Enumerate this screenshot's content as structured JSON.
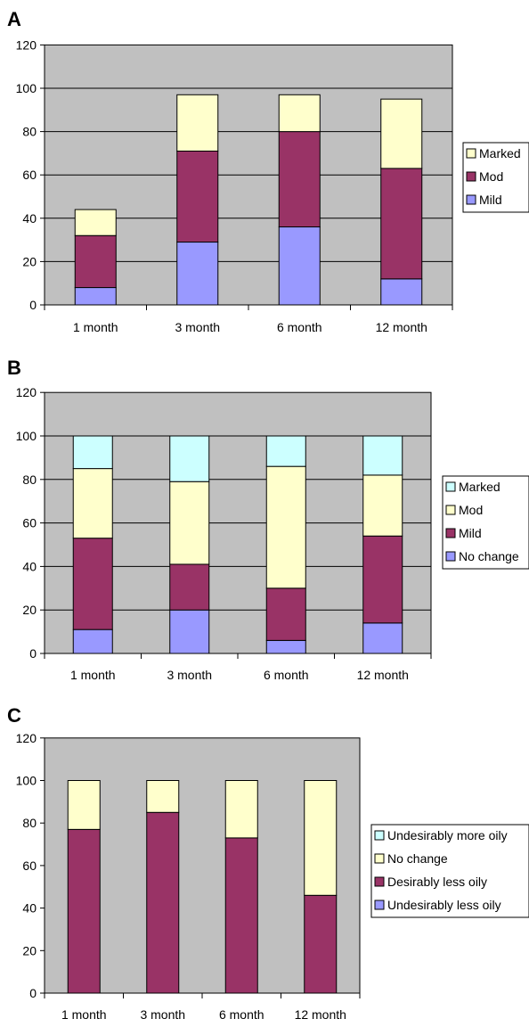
{
  "colors": {
    "plot_background": "#c0c0c0",
    "no_change_blue": "#9999ff",
    "plum": "#993366",
    "light_yellow": "#ffffcc",
    "light_cyan": "#ccffff"
  },
  "chart_data": [
    {
      "type": "bar",
      "stacked": true,
      "panel": "A",
      "categories": [
        "1 month",
        "3 month",
        "6 month",
        "12 month"
      ],
      "ylim": [
        0,
        120
      ],
      "yticks": [
        0,
        20,
        40,
        60,
        80,
        100,
        120
      ],
      "grid": true,
      "legend_position": "right",
      "series": [
        {
          "name": "Mild",
          "color": "#9999ff",
          "values": [
            8,
            29,
            36,
            12
          ]
        },
        {
          "name": "Mod",
          "color": "#993366",
          "values": [
            24,
            42,
            44,
            51
          ]
        },
        {
          "name": "Marked",
          "color": "#ffffcc",
          "values": [
            12,
            26,
            17,
            32
          ]
        }
      ],
      "legend_order": [
        "Marked",
        "Mod",
        "Mild"
      ]
    },
    {
      "type": "bar",
      "stacked": true,
      "panel": "B",
      "categories": [
        "1 month",
        "3 month",
        "6 month",
        "12 month"
      ],
      "ylim": [
        0,
        120
      ],
      "yticks": [
        0,
        20,
        40,
        60,
        80,
        100,
        120
      ],
      "grid": true,
      "legend_position": "right",
      "series": [
        {
          "name": "No change",
          "color": "#9999ff",
          "values": [
            11,
            20,
            6,
            14
          ]
        },
        {
          "name": "Mild",
          "color": "#993366",
          "values": [
            42,
            21,
            24,
            40
          ]
        },
        {
          "name": "Mod",
          "color": "#ffffcc",
          "values": [
            32,
            38,
            56,
            28
          ]
        },
        {
          "name": "Marked",
          "color": "#ccffff",
          "values": [
            15,
            21,
            14,
            18
          ]
        }
      ],
      "legend_order": [
        "Marked",
        "Mod",
        "Mild",
        "No change"
      ]
    },
    {
      "type": "bar",
      "stacked": true,
      "panel": "C",
      "categories": [
        "1 month",
        "3 month",
        "6 month",
        "12 month"
      ],
      "ylim": [
        0,
        120
      ],
      "yticks": [
        0,
        20,
        40,
        60,
        80,
        100,
        120
      ],
      "grid": false,
      "legend_position": "right",
      "series": [
        {
          "name": "Undesirably less oily",
          "color": "#9999ff",
          "values": [
            0,
            0,
            0,
            0
          ]
        },
        {
          "name": "Desirably less oily",
          "color": "#993366",
          "values": [
            77,
            85,
            73,
            46
          ]
        },
        {
          "name": "No change",
          "color": "#ffffcc",
          "values": [
            23,
            15,
            27,
            54
          ]
        },
        {
          "name": "Undesirably more oily",
          "color": "#ccffff",
          "values": [
            0,
            0,
            0,
            0
          ]
        }
      ],
      "legend_order": [
        "Undesirably more oily",
        "No change",
        "Desirably less oily",
        "Undesirably less oily"
      ]
    }
  ]
}
